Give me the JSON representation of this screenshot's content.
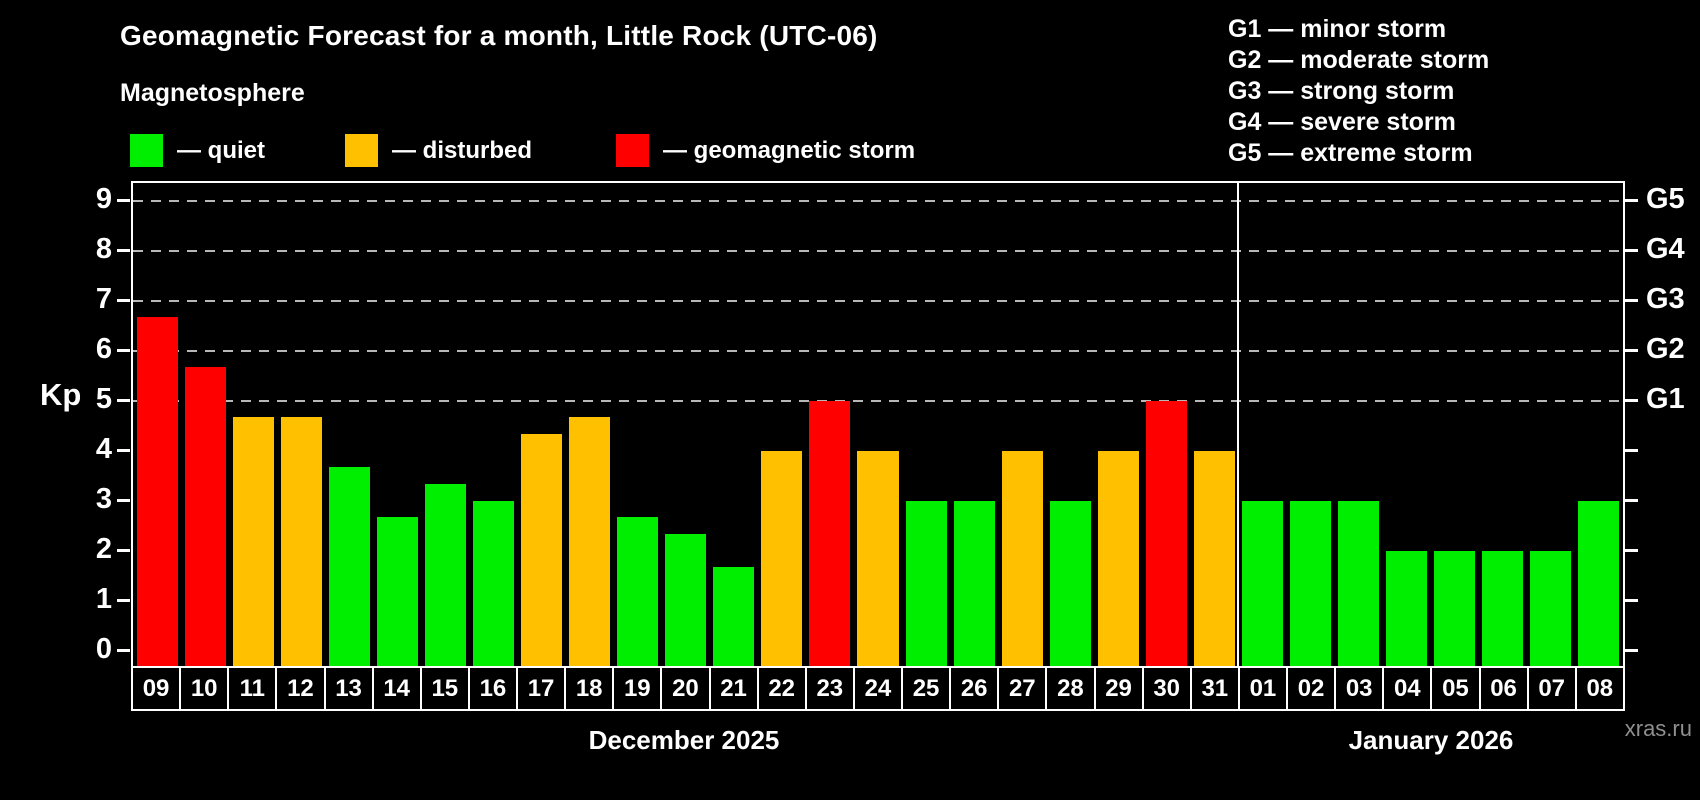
{
  "header": {
    "title": "Geomagnetic Forecast for a month, Little Rock (UTC-06)",
    "subtitle": "Magnetosphere"
  },
  "legend": {
    "items": [
      {
        "label": "— quiet",
        "level": "quiet",
        "color": "#00ee00"
      },
      {
        "label": "— disturbed",
        "level": "disturbed",
        "color": "#ffc000"
      },
      {
        "label": "— geomagnetic storm",
        "level": "storm",
        "color": "#ff0000"
      }
    ]
  },
  "g_legend": {
    "lines": [
      "G1 — minor storm",
      "G2 — moderate storm",
      "G3 — strong storm",
      "G4 — severe storm",
      "G5 — extreme storm"
    ]
  },
  "axes": {
    "y_title": "Kp",
    "y_ticks": [
      0,
      1,
      2,
      3,
      4,
      5,
      6,
      7,
      8,
      9
    ],
    "right_labels": [
      {
        "kp": 5,
        "label": "G1"
      },
      {
        "kp": 6,
        "label": "G2"
      },
      {
        "kp": 7,
        "label": "G3"
      },
      {
        "kp": 8,
        "label": "G4"
      },
      {
        "kp": 9,
        "label": "G5"
      }
    ],
    "grid_kp": [
      5,
      6,
      7,
      8,
      9
    ]
  },
  "months": [
    {
      "label": "December 2025",
      "days": 23
    },
    {
      "label": "January 2026",
      "days": 8
    }
  ],
  "watermark": "xras.ru",
  "chart_data": {
    "type": "bar",
    "title": "Geomagnetic Forecast for a month, Little Rock (UTC-06)",
    "xlabel": "",
    "ylabel": "Kp",
    "ylim": [
      0,
      9
    ],
    "grid": "horizontal dashed lines at Kp 5,6,7,8,9 (G1–G5)",
    "legend_position": "top-left",
    "colors": {
      "quiet": "#00ee00",
      "disturbed": "#ffc000",
      "storm": "#ff0000"
    },
    "bars": [
      {
        "date": "09",
        "month": "December 2025",
        "kp": 6.67,
        "level": "storm"
      },
      {
        "date": "10",
        "month": "December 2025",
        "kp": 5.67,
        "level": "storm"
      },
      {
        "date": "11",
        "month": "December 2025",
        "kp": 4.67,
        "level": "disturbed"
      },
      {
        "date": "12",
        "month": "December 2025",
        "kp": 4.67,
        "level": "disturbed"
      },
      {
        "date": "13",
        "month": "December 2025",
        "kp": 3.67,
        "level": "quiet"
      },
      {
        "date": "14",
        "month": "December 2025",
        "kp": 2.67,
        "level": "quiet"
      },
      {
        "date": "15",
        "month": "December 2025",
        "kp": 3.33,
        "level": "quiet"
      },
      {
        "date": "16",
        "month": "December 2025",
        "kp": 3.0,
        "level": "quiet"
      },
      {
        "date": "17",
        "month": "December 2025",
        "kp": 4.33,
        "level": "disturbed"
      },
      {
        "date": "18",
        "month": "December 2025",
        "kp": 4.67,
        "level": "disturbed"
      },
      {
        "date": "19",
        "month": "December 2025",
        "kp": 2.67,
        "level": "quiet"
      },
      {
        "date": "20",
        "month": "December 2025",
        "kp": 2.33,
        "level": "quiet"
      },
      {
        "date": "21",
        "month": "December 2025",
        "kp": 1.67,
        "level": "quiet"
      },
      {
        "date": "22",
        "month": "December 2025",
        "kp": 4.0,
        "level": "disturbed"
      },
      {
        "date": "23",
        "month": "December 2025",
        "kp": 5.0,
        "level": "storm"
      },
      {
        "date": "24",
        "month": "December 2025",
        "kp": 4.0,
        "level": "disturbed"
      },
      {
        "date": "25",
        "month": "December 2025",
        "kp": 3.0,
        "level": "quiet"
      },
      {
        "date": "26",
        "month": "December 2025",
        "kp": 3.0,
        "level": "quiet"
      },
      {
        "date": "27",
        "month": "December 2025",
        "kp": 4.0,
        "level": "disturbed"
      },
      {
        "date": "28",
        "month": "December 2025",
        "kp": 3.0,
        "level": "quiet"
      },
      {
        "date": "29",
        "month": "December 2025",
        "kp": 4.0,
        "level": "disturbed"
      },
      {
        "date": "30",
        "month": "December 2025",
        "kp": 5.0,
        "level": "storm"
      },
      {
        "date": "31",
        "month": "December 2025",
        "kp": 4.0,
        "level": "disturbed"
      },
      {
        "date": "01",
        "month": "January 2026",
        "kp": 3.0,
        "level": "quiet"
      },
      {
        "date": "02",
        "month": "January 2026",
        "kp": 3.0,
        "level": "quiet"
      },
      {
        "date": "03",
        "month": "January 2026",
        "kp": 3.0,
        "level": "quiet"
      },
      {
        "date": "04",
        "month": "January 2026",
        "kp": 2.0,
        "level": "quiet"
      },
      {
        "date": "05",
        "month": "January 2026",
        "kp": 2.0,
        "level": "quiet"
      },
      {
        "date": "06",
        "month": "January 2026",
        "kp": 2.0,
        "level": "quiet"
      },
      {
        "date": "07",
        "month": "January 2026",
        "kp": 2.0,
        "level": "quiet"
      },
      {
        "date": "08",
        "month": "January 2026",
        "kp": 3.0,
        "level": "quiet"
      }
    ]
  }
}
